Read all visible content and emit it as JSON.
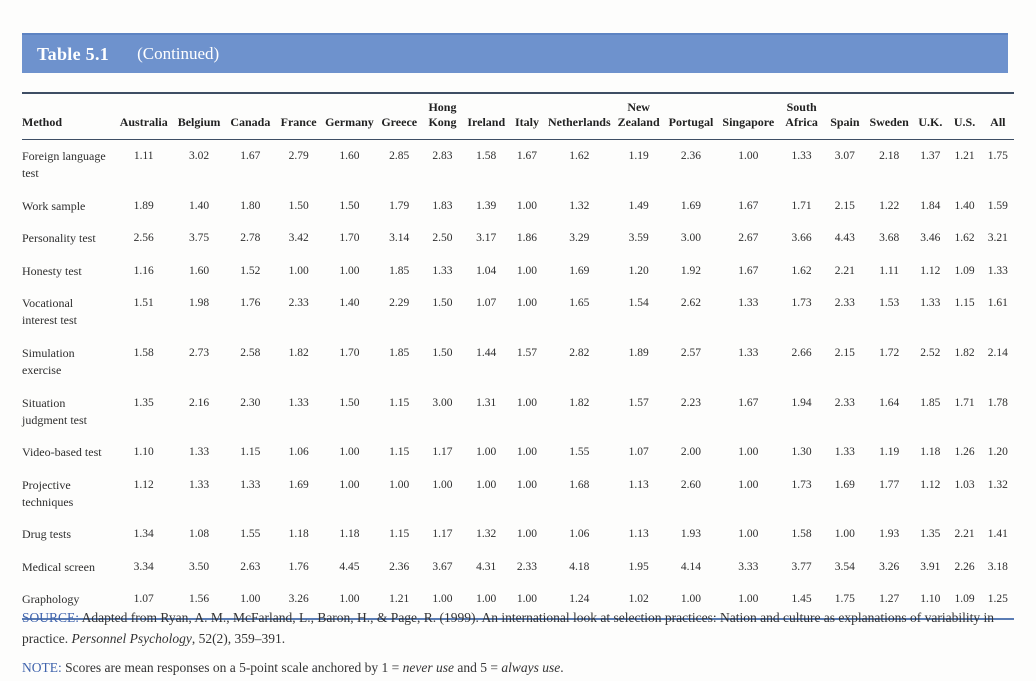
{
  "title_bar": {
    "label": "Table 5.1",
    "subtitle": "(Continued)",
    "bar_color": "#6e92cd"
  },
  "table": {
    "columns": [
      "Method",
      "Australia",
      "Belgium",
      "Canada",
      "France",
      "Germany",
      "Greece",
      "Hong Kong",
      "Ireland",
      "Italy",
      "Netherlands",
      "New Zealand",
      "Portugal",
      "Singapore",
      "South Africa",
      "Spain",
      "Sweden",
      "U.K.",
      "U.S.",
      "All"
    ],
    "rows": [
      {
        "method": "Foreign language test",
        "values": [
          "1.11",
          "3.02",
          "1.67",
          "2.79",
          "1.60",
          "2.85",
          "2.83",
          "1.58",
          "1.67",
          "1.62",
          "1.19",
          "2.36",
          "1.00",
          "1.33",
          "3.07",
          "2.18",
          "1.37",
          "1.21",
          "1.75"
        ]
      },
      {
        "method": "Work sample",
        "values": [
          "1.89",
          "1.40",
          "1.80",
          "1.50",
          "1.50",
          "1.79",
          "1.83",
          "1.39",
          "1.00",
          "1.32",
          "1.49",
          "1.69",
          "1.67",
          "1.71",
          "2.15",
          "1.22",
          "1.84",
          "1.40",
          "1.59"
        ]
      },
      {
        "method": "Personality test",
        "values": [
          "2.56",
          "3.75",
          "2.78",
          "3.42",
          "1.70",
          "3.14",
          "2.50",
          "3.17",
          "1.86",
          "3.29",
          "3.59",
          "3.00",
          "2.67",
          "3.66",
          "4.43",
          "3.68",
          "3.46",
          "1.62",
          "3.21"
        ]
      },
      {
        "method": "Honesty test",
        "values": [
          "1.16",
          "1.60",
          "1.52",
          "1.00",
          "1.00",
          "1.85",
          "1.33",
          "1.04",
          "1.00",
          "1.69",
          "1.20",
          "1.92",
          "1.67",
          "1.62",
          "2.21",
          "1.11",
          "1.12",
          "1.09",
          "1.33"
        ]
      },
      {
        "method": "Vocational interest test",
        "values": [
          "1.51",
          "1.98",
          "1.76",
          "2.33",
          "1.40",
          "2.29",
          "1.50",
          "1.07",
          "1.00",
          "1.65",
          "1.54",
          "2.62",
          "1.33",
          "1.73",
          "2.33",
          "1.53",
          "1.33",
          "1.15",
          "1.61"
        ]
      },
      {
        "method": "Simulation exercise",
        "values": [
          "1.58",
          "2.73",
          "2.58",
          "1.82",
          "1.70",
          "1.85",
          "1.50",
          "1.44",
          "1.57",
          "2.82",
          "1.89",
          "2.57",
          "1.33",
          "2.66",
          "2.15",
          "1.72",
          "2.52",
          "1.82",
          "2.14"
        ]
      },
      {
        "method": "Situation judgment test",
        "values": [
          "1.35",
          "2.16",
          "2.30",
          "1.33",
          "1.50",
          "1.15",
          "3.00",
          "1.31",
          "1.00",
          "1.82",
          "1.57",
          "2.23",
          "1.67",
          "1.94",
          "2.33",
          "1.64",
          "1.85",
          "1.71",
          "1.78"
        ]
      },
      {
        "method": "Video-based test",
        "values": [
          "1.10",
          "1.33",
          "1.15",
          "1.06",
          "1.00",
          "1.15",
          "1.17",
          "1.00",
          "1.00",
          "1.55",
          "1.07",
          "2.00",
          "1.00",
          "1.30",
          "1.33",
          "1.19",
          "1.18",
          "1.26",
          "1.20"
        ]
      },
      {
        "method": "Projective techniques",
        "values": [
          "1.12",
          "1.33",
          "1.33",
          "1.69",
          "1.00",
          "1.00",
          "1.00",
          "1.00",
          "1.00",
          "1.68",
          "1.13",
          "2.60",
          "1.00",
          "1.73",
          "1.69",
          "1.77",
          "1.12",
          "1.03",
          "1.32"
        ]
      },
      {
        "method": "Drug tests",
        "values": [
          "1.34",
          "1.08",
          "1.55",
          "1.18",
          "1.18",
          "1.15",
          "1.17",
          "1.32",
          "1.00",
          "1.06",
          "1.13",
          "1.93",
          "1.00",
          "1.58",
          "1.00",
          "1.93",
          "1.35",
          "2.21",
          "1.41"
        ]
      },
      {
        "method": "Medical screen",
        "values": [
          "3.34",
          "3.50",
          "2.63",
          "1.76",
          "4.45",
          "2.36",
          "3.67",
          "4.31",
          "2.33",
          "4.18",
          "1.95",
          "4.14",
          "3.33",
          "3.77",
          "3.54",
          "3.26",
          "3.91",
          "2.26",
          "3.18"
        ]
      },
      {
        "method": "Graphology",
        "values": [
          "1.07",
          "1.56",
          "1.00",
          "3.26",
          "1.00",
          "1.21",
          "1.00",
          "1.00",
          "1.00",
          "1.24",
          "1.02",
          "1.00",
          "1.00",
          "1.45",
          "1.75",
          "1.27",
          "1.10",
          "1.09",
          "1.25"
        ]
      }
    ]
  },
  "source": {
    "label": "SOURCE:",
    "text_before_italic": "  Adapted from Ryan, A. M., McFarland, L., Baron, H., & Page, R. (1999). An international look at selection practices: Nation and culture as explanations of variability in practice. ",
    "journal_italic": "Personnel Psychology",
    "text_after_italic": ", 52(2), 359–391."
  },
  "note": {
    "label": "NOTE:",
    "text_before": " Scores are mean responses on a 5-point scale anchored by 1 = ",
    "italic1": "never use",
    "text_mid": " and 5 = ",
    "italic2": "always use",
    "text_end": "."
  }
}
